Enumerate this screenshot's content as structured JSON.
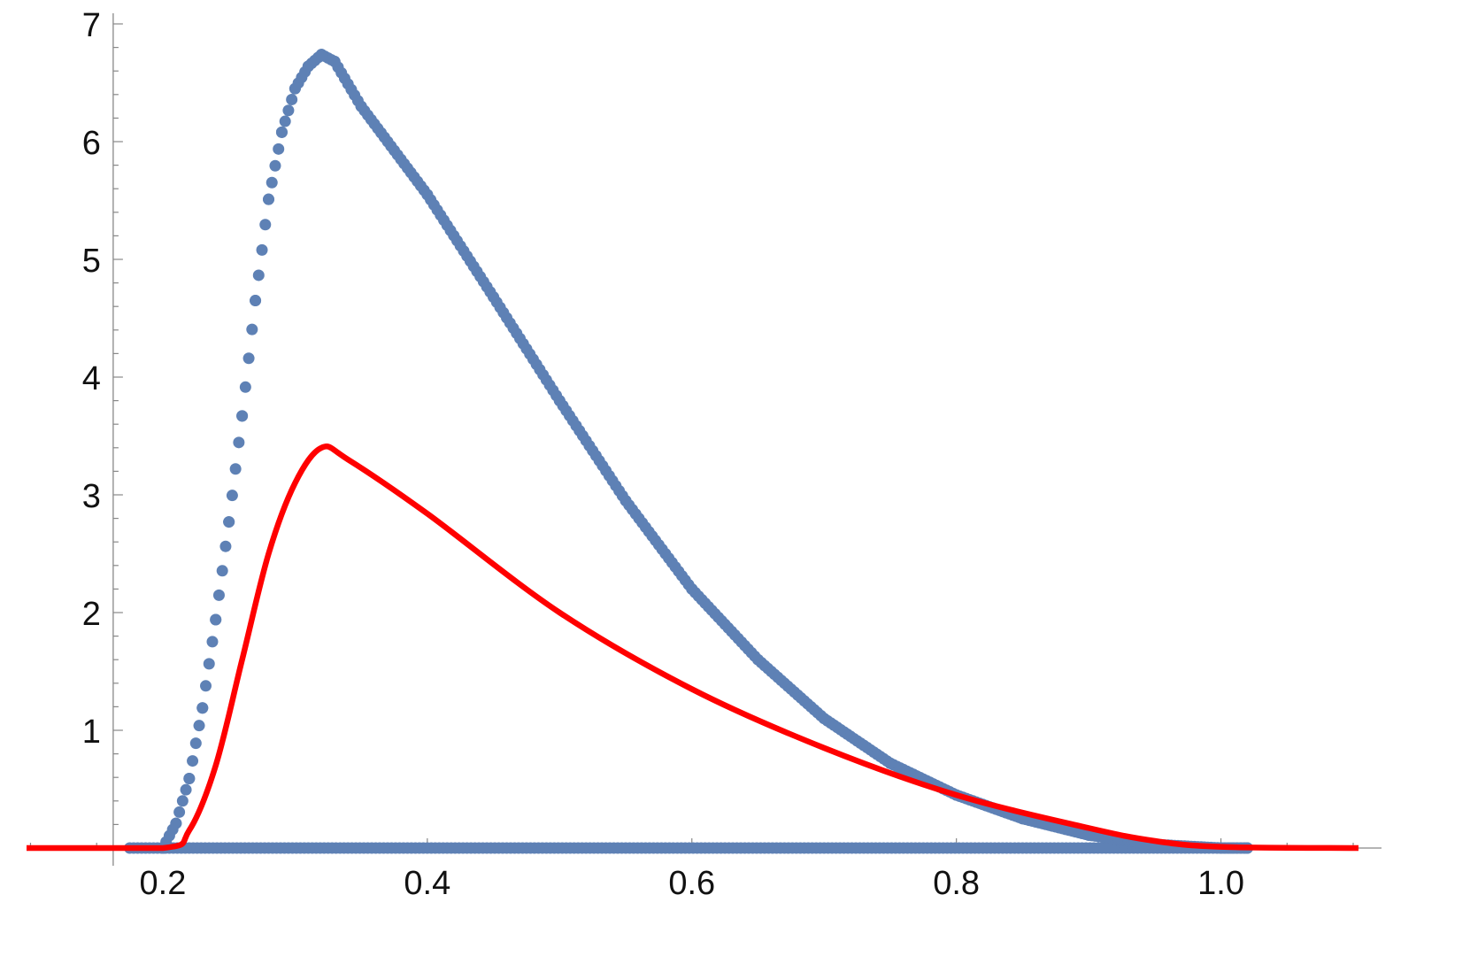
{
  "chart_data": {
    "type": "scatter",
    "title": "",
    "xlabel": "",
    "ylabel": "",
    "xlim": [
      0.097,
      1.104
    ],
    "ylim": [
      0,
      7
    ],
    "axes_origin": [
      0.1625,
      0
    ],
    "grid": false,
    "x_ticks": [
      {
        "value": 0.2,
        "label": "0.2"
      },
      {
        "value": 0.4,
        "label": "0.4"
      },
      {
        "value": 0.6,
        "label": "0.6"
      },
      {
        "value": 0.8,
        "label": "0.8"
      },
      {
        "value": 1.0,
        "label": "1.0"
      }
    ],
    "y_ticks": [
      {
        "value": 1,
        "label": "1"
      },
      {
        "value": 2,
        "label": "2"
      },
      {
        "value": 3,
        "label": "3"
      },
      {
        "value": 4,
        "label": "4"
      },
      {
        "value": 5,
        "label": "5"
      },
      {
        "value": 6,
        "label": "6"
      },
      {
        "value": 7,
        "label": "7"
      }
    ],
    "series": [
      {
        "type": "scatter",
        "color": "#5e81b5",
        "x": [
          0.2,
          0.21,
          0.22,
          0.23,
          0.24,
          0.25,
          0.26,
          0.27,
          0.28,
          0.29,
          0.3,
          0.31,
          0.32,
          0.33,
          0.35,
          0.4,
          0.45,
          0.5,
          0.55,
          0.6,
          0.65,
          0.7,
          0.75,
          0.8,
          0.85,
          0.9,
          0.95,
          1.0,
          1.02
        ],
        "y": [
          0.0,
          0.21,
          0.59,
          1.19,
          1.94,
          2.77,
          3.67,
          4.65,
          5.51,
          6.08,
          6.45,
          6.64,
          6.74,
          6.68,
          6.3,
          5.55,
          4.68,
          3.8,
          2.95,
          2.2,
          1.6,
          1.1,
          0.72,
          0.45,
          0.25,
          0.11,
          0.03,
          0.0,
          0.0
        ],
        "baseline_points": {
          "x_start": 0.175,
          "x_end": 1.02,
          "y": 0
        }
      },
      {
        "type": "line",
        "color": "#ff0000",
        "x": [
          0.097,
          0.2,
          0.22,
          0.24,
          0.26,
          0.28,
          0.3,
          0.32,
          0.34,
          0.4,
          0.5,
          0.6,
          0.7,
          0.8,
          0.9,
          0.95,
          1.0,
          1.104
        ],
        "y": [
          0,
          0,
          0.15,
          0.7,
          1.6,
          2.5,
          3.1,
          3.4,
          3.3,
          2.84,
          2.0,
          1.35,
          0.85,
          0.45,
          0.17,
          0.06,
          0.01,
          0
        ]
      }
    ]
  }
}
